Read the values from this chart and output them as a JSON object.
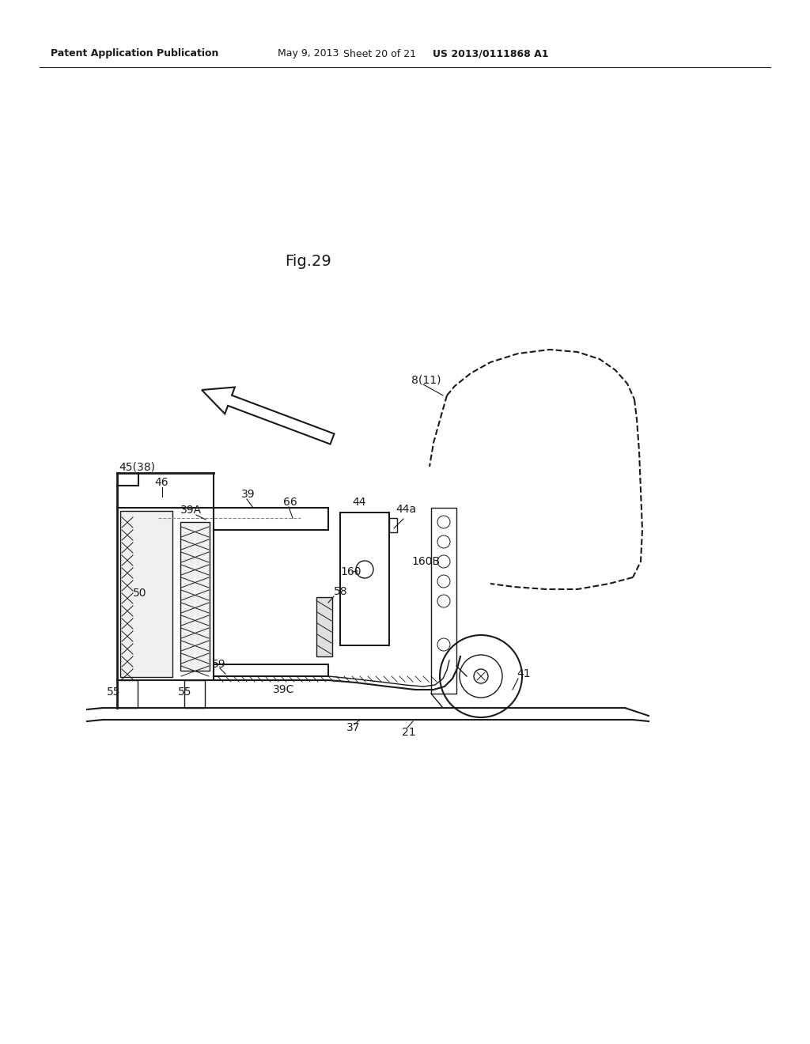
{
  "bg_color": "#ffffff",
  "header_text": "Patent Application Publication",
  "header_date": "May 9, 2013",
  "header_sheet": "Sheet 20 of 21",
  "header_patent": "US 2013/0111868 A1",
  "fig_label": "Fig.29",
  "line_color": "#1a1a1a",
  "label_color": "#1a1a1a",
  "label_fontsize": 10,
  "fig_label_fontsize": 14
}
